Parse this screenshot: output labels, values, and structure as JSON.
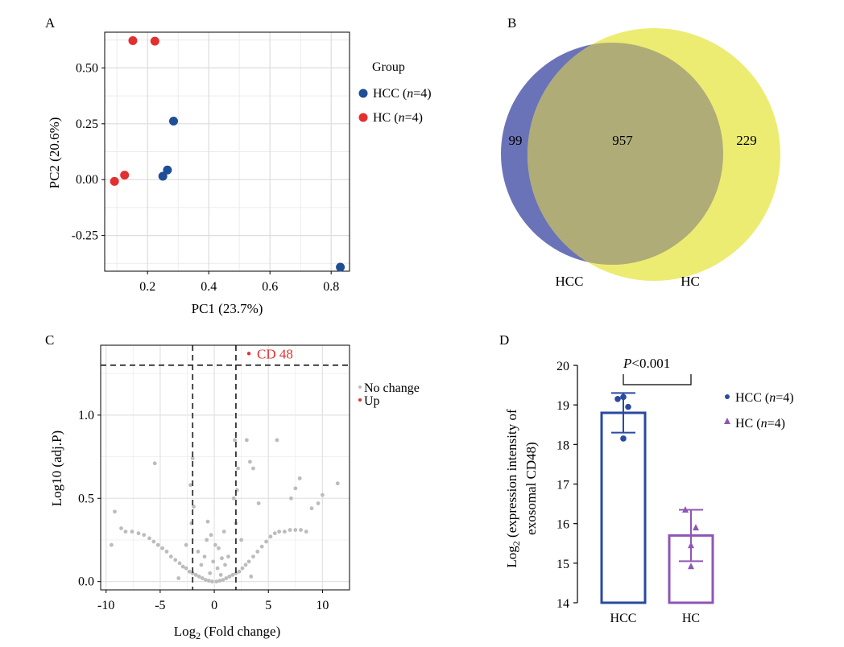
{
  "panels": {
    "a": "A",
    "b": "B",
    "c": "C",
    "d": "D"
  },
  "chart_data": [
    {
      "type": "scatter",
      "panel": "A",
      "xlabel": "PC1 (23.7%)",
      "ylabel": "PC2 (20.6%)",
      "xlim": [
        0.06,
        0.86
      ],
      "ylim": [
        -0.41,
        0.66
      ],
      "xticks": [
        {
          "v": 0.2,
          "label": "0.2"
        },
        {
          "v": 0.4,
          "label": "0.4"
        },
        {
          "v": 0.6,
          "label": "0.6"
        },
        {
          "v": 0.8,
          "label": "0.8"
        }
      ],
      "yticks": [
        {
          "v": 0.5,
          "label": "0.50"
        },
        {
          "v": 0.25,
          "label": "0.25"
        },
        {
          "v": 0.0,
          "label": "0.00"
        },
        {
          "v": -0.25,
          "label": "-0.25"
        }
      ],
      "grid": true,
      "legend": {
        "title": "Group",
        "entries": [
          {
            "name": "HCC",
            "n": "n",
            "eq": "=4)",
            "open": " (",
            "color": "#1f4e96"
          },
          {
            "name": "HC",
            "n": "n",
            "eq": "=4)",
            "open": " (",
            "color": "#e52f2f"
          }
        ]
      },
      "series": [
        {
          "name": "HCC",
          "color": "#1f4e96",
          "points": [
            [
              0.285,
              0.262
            ],
            [
              0.265,
              0.043
            ],
            [
              0.25,
              0.015
            ],
            [
              0.83,
              -0.392
            ]
          ]
        },
        {
          "name": "HC",
          "color": "#e52f2f",
          "points": [
            [
              0.152,
              0.622
            ],
            [
              0.224,
              0.62
            ],
            [
              0.125,
              0.02
            ],
            [
              0.092,
              -0.008
            ]
          ]
        }
      ]
    },
    {
      "type": "venn",
      "panel": "B",
      "sets": [
        {
          "label": "HCC",
          "only": "99",
          "color": "#6b73b8"
        },
        {
          "label": "HC",
          "only": "229",
          "color": "#ecec72"
        }
      ],
      "intersection": "957",
      "intersection_color": "#b0ac78"
    },
    {
      "type": "scatter",
      "panel": "C",
      "xlabel_pre": "Log",
      "xlabel_sub": "2",
      "xlabel_post": " (Fold change)",
      "ylabel": "Log10 (adj.P)",
      "xlim": [
        -10.5,
        12.5
      ],
      "ylim": [
        -0.05,
        1.42
      ],
      "xticks": [
        {
          "v": -10,
          "label": "-10"
        },
        {
          "v": -5,
          "label": "-5"
        },
        {
          "v": 0,
          "label": "0"
        },
        {
          "v": 5,
          "label": "5"
        },
        {
          "v": 10,
          "label": "10"
        }
      ],
      "yticks": [
        {
          "v": 0.0,
          "label": "0.0"
        },
        {
          "v": 0.5,
          "label": "0.5"
        },
        {
          "v": 1.0,
          "label": "1.0"
        }
      ],
      "grid": true,
      "thresholds": {
        "x": [
          -2,
          2
        ],
        "y": 1.3
      },
      "legend": {
        "entries": [
          {
            "name": "No change",
            "color": "#bcbcbc"
          },
          {
            "name": "Up",
            "color": "#e52f2f"
          }
        ]
      },
      "up_points": [
        {
          "x": 3.2,
          "y": 1.37,
          "label": "CD 48"
        }
      ],
      "background_points": [
        [
          -9.2,
          0.42
        ],
        [
          -8.6,
          0.32
        ],
        [
          -8.2,
          0.3
        ],
        [
          -7.6,
          0.3
        ],
        [
          -7.0,
          0.29
        ],
        [
          -6.5,
          0.28
        ],
        [
          -6.0,
          0.26
        ],
        [
          -5.6,
          0.24
        ],
        [
          -5.2,
          0.22
        ],
        [
          -4.8,
          0.2
        ],
        [
          -4.4,
          0.18
        ],
        [
          -4.0,
          0.15
        ],
        [
          -3.6,
          0.13
        ],
        [
          -3.2,
          0.11
        ],
        [
          -2.9,
          0.09
        ],
        [
          -2.6,
          0.08
        ],
        [
          -2.3,
          0.06
        ],
        [
          -2.0,
          0.05
        ],
        [
          -1.7,
          0.04
        ],
        [
          -1.4,
          0.03
        ],
        [
          -1.1,
          0.02
        ],
        [
          -0.8,
          0.01
        ],
        [
          -0.5,
          0.005
        ],
        [
          -0.2,
          0.0
        ],
        [
          0.2,
          0.0
        ],
        [
          0.5,
          0.005
        ],
        [
          0.8,
          0.01
        ],
        [
          1.1,
          0.02
        ],
        [
          1.4,
          0.03
        ],
        [
          1.7,
          0.04
        ],
        [
          2.0,
          0.05
        ],
        [
          2.3,
          0.06
        ],
        [
          2.6,
          0.08
        ],
        [
          2.9,
          0.1
        ],
        [
          3.2,
          0.12
        ],
        [
          3.6,
          0.15
        ],
        [
          4.0,
          0.18
        ],
        [
          4.4,
          0.21
        ],
        [
          4.8,
          0.24
        ],
        [
          5.2,
          0.27
        ],
        [
          5.6,
          0.29
        ],
        [
          6.0,
          0.3
        ],
        [
          6.5,
          0.3
        ],
        [
          7.0,
          0.31
        ],
        [
          7.5,
          0.31
        ],
        [
          8.0,
          0.31
        ],
        [
          8.5,
          0.3
        ],
        [
          9.0,
          0.44
        ],
        [
          9.6,
          0.47
        ],
        [
          10.0,
          0.52
        ],
        [
          11.4,
          0.59
        ],
        [
          -5.5,
          0.71
        ],
        [
          -2.0,
          0.74
        ],
        [
          -2.2,
          0.58
        ],
        [
          -1.9,
          0.45
        ],
        [
          -2.1,
          0.35
        ],
        [
          -0.6,
          0.36
        ],
        [
          -0.3,
          0.28
        ],
        [
          0.1,
          0.22
        ],
        [
          0.4,
          0.2
        ],
        [
          -0.9,
          0.15
        ],
        [
          0.7,
          0.14
        ],
        [
          -1.2,
          0.1
        ],
        [
          1.0,
          0.1
        ],
        [
          1.8,
          0.5
        ],
        [
          2.1,
          0.55
        ],
        [
          1.9,
          0.85
        ],
        [
          2.2,
          0.68
        ],
        [
          2.0,
          0.35
        ],
        [
          3.0,
          0.85
        ],
        [
          3.3,
          0.72
        ],
        [
          3.6,
          0.68
        ],
        [
          5.8,
          0.85
        ],
        [
          7.1,
          0.5
        ],
        [
          7.5,
          0.56
        ],
        [
          7.9,
          0.62
        ],
        [
          4.1,
          0.47
        ],
        [
          -9.5,
          0.22
        ],
        [
          -0.1,
          0.12
        ],
        [
          0.3,
          0.08
        ],
        [
          -0.4,
          0.05
        ],
        [
          0.6,
          0.04
        ],
        [
          1.3,
          0.15
        ],
        [
          -1.5,
          0.18
        ],
        [
          2.5,
          0.25
        ],
        [
          -2.6,
          0.22
        ],
        [
          -3.3,
          0.02
        ],
        [
          3.4,
          0.03
        ],
        [
          -0.7,
          0.25
        ],
        [
          0.9,
          0.3
        ]
      ]
    },
    {
      "type": "bar",
      "panel": "D",
      "categories": [
        "HCC",
        "HC"
      ],
      "values": [
        18.8,
        15.7
      ],
      "error": [
        [
          18.3,
          19.3
        ],
        [
          15.05,
          16.35
        ]
      ],
      "ylim": [
        14,
        20
      ],
      "yticks": [
        {
          "v": 14,
          "label": "14"
        },
        {
          "v": 15,
          "label": "15"
        },
        {
          "v": 16,
          "label": "16"
        },
        {
          "v": 17,
          "label": "17"
        },
        {
          "v": 18,
          "label": "18"
        },
        {
          "v": 19,
          "label": "19"
        },
        {
          "v": 20,
          "label": "20"
        }
      ],
      "ylabel_pre": "Log",
      "ylabel_sub": "2",
      "ylabel_post": " (expression intensity of",
      "ylabel_line2": "exosomal CD48)",
      "significance": {
        "p": "P",
        "rest": "<0.001"
      },
      "legend": {
        "entries": [
          {
            "name": "HCC",
            "n": "n",
            "eq": "=4)",
            "open": " (",
            "color": "#2a4aa0",
            "marker": "circle"
          },
          {
            "name": "HC",
            "n": "n",
            "eq": "=4)",
            "open": " (",
            "color": "#8e56b4",
            "marker": "triangle"
          }
        ]
      },
      "series": [
        {
          "name": "HCC",
          "color": "#2a4aa0",
          "points": [
            19.15,
            18.95,
            19.2,
            18.15
          ]
        },
        {
          "name": "HC",
          "color": "#8e56b4",
          "points": [
            16.35,
            15.9,
            15.45,
            14.92
          ]
        }
      ]
    }
  ]
}
